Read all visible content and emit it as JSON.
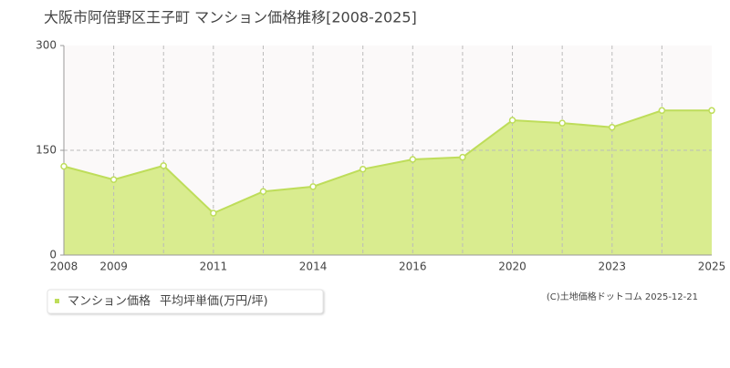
{
  "chart_data": {
    "type": "area",
    "title": "大阪市阿倍野区王子町 マンション価格推移[2008-2025]",
    "categories": [
      "2008",
      "2009",
      null,
      "2011",
      null,
      "2014",
      null,
      "2016",
      null,
      "2020",
      null,
      "2023",
      null,
      "2025"
    ],
    "series": [
      {
        "name": "マンション価格",
        "color": "#bedd5a",
        "fill": "#d9ec8f",
        "values": [
          127,
          108,
          128,
          60,
          91,
          98,
          123,
          137,
          140,
          193,
          189,
          183,
          207,
          207
        ]
      }
    ],
    "y_label": "平均坪単価(万円/坪)",
    "ylim": [
      0,
      300
    ],
    "yticks": [
      0,
      150,
      300
    ],
    "grid": true,
    "source": "(C)土地価格ドットコム 2025-12-21"
  }
}
